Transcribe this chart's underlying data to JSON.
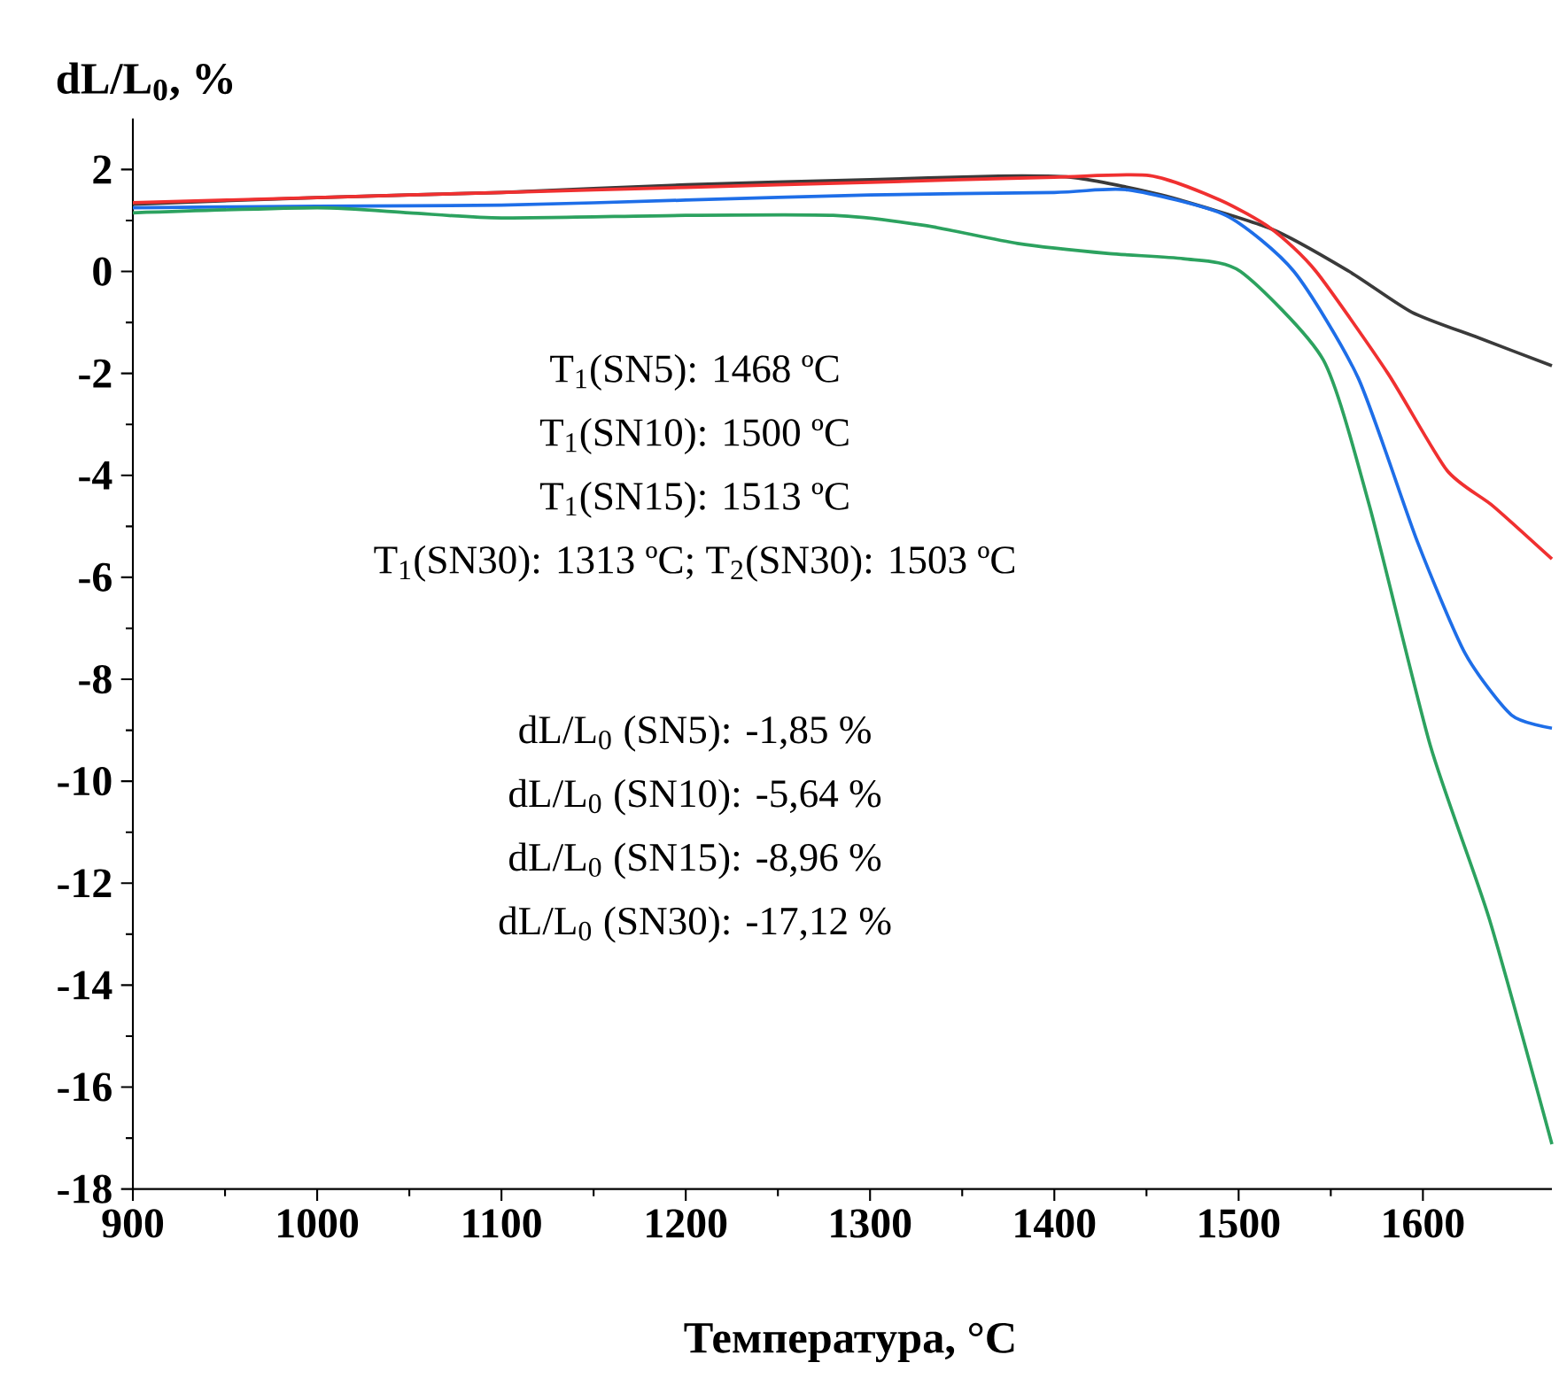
{
  "chart_data": {
    "type": "line",
    "xlabel": "Температура, °C",
    "ylabel": "dL/L$_{0}$, %",
    "xlim": [
      900,
      1670
    ],
    "ylim": [
      -18,
      3
    ],
    "xticks": [
      900,
      1000,
      1100,
      1200,
      1300,
      1400,
      1500,
      1600
    ],
    "yticks": [
      -18,
      -16,
      -14,
      -12,
      -10,
      -8,
      -6,
      -4,
      -2,
      0,
      2
    ],
    "grid": false,
    "marker": "none",
    "line_style": "solid",
    "annotations": [
      "T$_{1}$(SN5): 1468 ºC",
      "T$_{1}$(SN10): 1500 ºC",
      "T$_{1}$(SN15): 1513 ºC",
      "T$_{1}$(SN30): 1313 ºC; T$_{2}$(SN30): 1503 ºC",
      "dL/L$_{0}$ (SN5): -1,85 %",
      "dL/L$_{0}$ (SN10): -5,64 %",
      "dL/L$_{0}$ (SN15): -8,96 %",
      "dL/L$_{0}$ (SN30): -17,12 %"
    ],
    "series": [
      {
        "color": "#3a3a3a",
        "x": [
          900,
          1000,
          1100,
          1200,
          1300,
          1370,
          1411,
          1458,
          1518,
          1560,
          1594,
          1630,
          1670
        ],
        "values": [
          1.32,
          1.45,
          1.55,
          1.7,
          1.8,
          1.87,
          1.84,
          1.5,
          0.83,
          0,
          -0.8,
          -1.3,
          -1.85
        ]
      },
      {
        "color": "#f03030",
        "x": [
          900,
          1000,
          1100,
          1200,
          1300,
          1400,
          1452,
          1490,
          1518,
          1542,
          1581,
          1613,
          1638,
          1670
        ],
        "values": [
          1.35,
          1.45,
          1.55,
          1.65,
          1.75,
          1.85,
          1.88,
          1.4,
          0.83,
          0,
          -2.0,
          -3.9,
          -4.6,
          -5.64
        ]
      },
      {
        "color": "#1e6ee8",
        "x": [
          900,
          1000,
          1100,
          1200,
          1300,
          1400,
          1440,
          1493,
          1530,
          1565,
          1597,
          1623,
          1648,
          1670
        ],
        "values": [
          1.25,
          1.28,
          1.3,
          1.4,
          1.5,
          1.55,
          1.6,
          1.1,
          0,
          -2.1,
          -5.3,
          -7.5,
          -8.7,
          -8.96
        ]
      },
      {
        "color": "#2ca25f",
        "x": [
          900,
          1000,
          1050,
          1100,
          1200,
          1280,
          1330,
          1380,
          1430,
          1470,
          1501,
          1546,
          1571,
          1604,
          1636,
          1670
        ],
        "values": [
          1.15,
          1.25,
          1.15,
          1.05,
          1.1,
          1.1,
          0.9,
          0.55,
          0.35,
          0.25,
          0,
          -1.74,
          -4.6,
          -9.3,
          -12.7,
          -17.12
        ]
      }
    ]
  }
}
